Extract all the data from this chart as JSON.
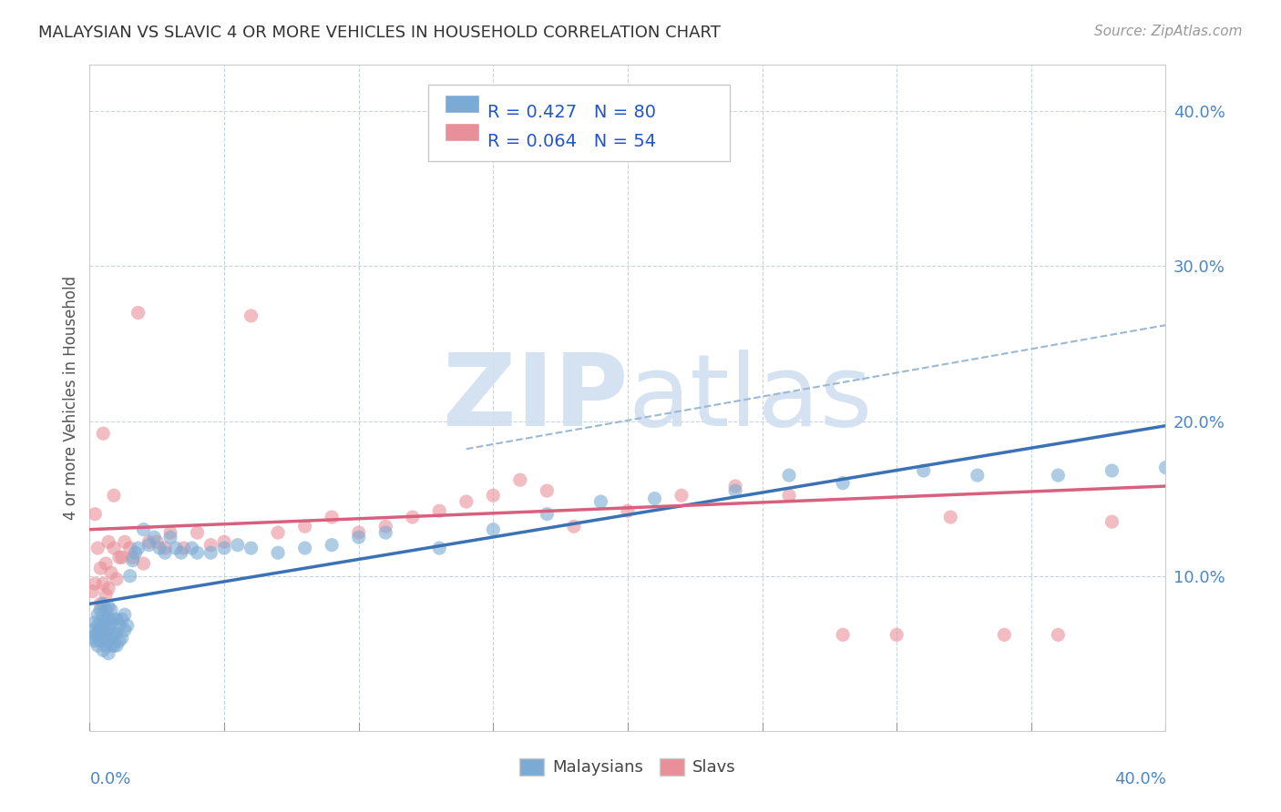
{
  "title": "MALAYSIAN VS SLAVIC 4 OR MORE VEHICLES IN HOUSEHOLD CORRELATION CHART",
  "source": "Source: ZipAtlas.com",
  "ylabel": "4 or more Vehicles in Household",
  "ytick_labels": [
    "10.0%",
    "20.0%",
    "30.0%",
    "40.0%"
  ],
  "ytick_values": [
    0.1,
    0.2,
    0.3,
    0.4
  ],
  "xlim": [
    0.0,
    0.4
  ],
  "ylim": [
    0.0,
    0.43
  ],
  "legend_entry1": "R = 0.427   N = 80",
  "legend_entry2": "R = 0.064   N = 54",
  "malaysian_color": "#7BAAD4",
  "slav_color": "#E8909A",
  "trend_blue": "#3A72B5",
  "trend_pink": "#D95F7F",
  "trend_dashed_color": "#9BB8D4",
  "watermark_color": "#D0DFF0",
  "background_color": "#ffffff",
  "grid_color": "#C8D4E0",
  "malaysians_x": [
    0.001,
    0.001,
    0.002,
    0.002,
    0.002,
    0.003,
    0.003,
    0.003,
    0.003,
    0.004,
    0.004,
    0.004,
    0.004,
    0.005,
    0.005,
    0.005,
    0.005,
    0.005,
    0.006,
    0.006,
    0.006,
    0.006,
    0.007,
    0.007,
    0.007,
    0.007,
    0.007,
    0.008,
    0.008,
    0.008,
    0.008,
    0.009,
    0.009,
    0.009,
    0.01,
    0.01,
    0.01,
    0.011,
    0.011,
    0.012,
    0.012,
    0.013,
    0.013,
    0.014,
    0.015,
    0.016,
    0.017,
    0.018,
    0.02,
    0.022,
    0.024,
    0.026,
    0.028,
    0.03,
    0.032,
    0.034,
    0.038,
    0.04,
    0.045,
    0.05,
    0.055,
    0.06,
    0.07,
    0.08,
    0.09,
    0.1,
    0.11,
    0.13,
    0.15,
    0.17,
    0.19,
    0.21,
    0.24,
    0.26,
    0.28,
    0.31,
    0.33,
    0.36,
    0.38,
    0.4
  ],
  "malaysians_y": [
    0.06,
    0.065,
    0.058,
    0.062,
    0.07,
    0.055,
    0.063,
    0.068,
    0.075,
    0.058,
    0.065,
    0.07,
    0.078,
    0.052,
    0.06,
    0.068,
    0.075,
    0.082,
    0.055,
    0.063,
    0.07,
    0.078,
    0.05,
    0.058,
    0.065,
    0.072,
    0.08,
    0.055,
    0.062,
    0.07,
    0.078,
    0.055,
    0.063,
    0.072,
    0.055,
    0.063,
    0.072,
    0.058,
    0.068,
    0.06,
    0.072,
    0.065,
    0.075,
    0.068,
    0.1,
    0.11,
    0.115,
    0.118,
    0.13,
    0.12,
    0.125,
    0.118,
    0.115,
    0.125,
    0.118,
    0.115,
    0.118,
    0.115,
    0.115,
    0.118,
    0.12,
    0.118,
    0.115,
    0.118,
    0.12,
    0.125,
    0.128,
    0.118,
    0.13,
    0.14,
    0.148,
    0.15,
    0.155,
    0.165,
    0.16,
    0.168,
    0.165,
    0.165,
    0.168,
    0.17
  ],
  "slavs_x": [
    0.001,
    0.002,
    0.002,
    0.003,
    0.004,
    0.004,
    0.005,
    0.005,
    0.006,
    0.006,
    0.007,
    0.007,
    0.008,
    0.009,
    0.009,
    0.01,
    0.011,
    0.012,
    0.013,
    0.015,
    0.016,
    0.018,
    0.02,
    0.022,
    0.025,
    0.028,
    0.03,
    0.035,
    0.04,
    0.045,
    0.05,
    0.06,
    0.07,
    0.08,
    0.09,
    0.1,
    0.11,
    0.12,
    0.13,
    0.14,
    0.15,
    0.16,
    0.17,
    0.18,
    0.2,
    0.22,
    0.24,
    0.26,
    0.28,
    0.3,
    0.32,
    0.34,
    0.36,
    0.38
  ],
  "slavs_y": [
    0.09,
    0.14,
    0.095,
    0.118,
    0.082,
    0.105,
    0.095,
    0.192,
    0.088,
    0.108,
    0.092,
    0.122,
    0.102,
    0.118,
    0.152,
    0.098,
    0.112,
    0.112,
    0.122,
    0.118,
    0.112,
    0.27,
    0.108,
    0.122,
    0.122,
    0.118,
    0.128,
    0.118,
    0.128,
    0.12,
    0.122,
    0.268,
    0.128,
    0.132,
    0.138,
    0.128,
    0.132,
    0.138,
    0.142,
    0.148,
    0.152,
    0.162,
    0.155,
    0.132,
    0.142,
    0.152,
    0.158,
    0.152,
    0.062,
    0.062,
    0.138,
    0.062,
    0.062,
    0.135
  ],
  "blue_trend_x0": 0.0,
  "blue_trend_y0": 0.082,
  "blue_trend_x1": 0.4,
  "blue_trend_y1": 0.197,
  "pink_trend_x0": 0.0,
  "pink_trend_y0": 0.13,
  "pink_trend_x1": 0.4,
  "pink_trend_y1": 0.158,
  "dashed_trend_x0": 0.14,
  "dashed_trend_y0": 0.182,
  "dashed_trend_x1": 0.4,
  "dashed_trend_y1": 0.262
}
